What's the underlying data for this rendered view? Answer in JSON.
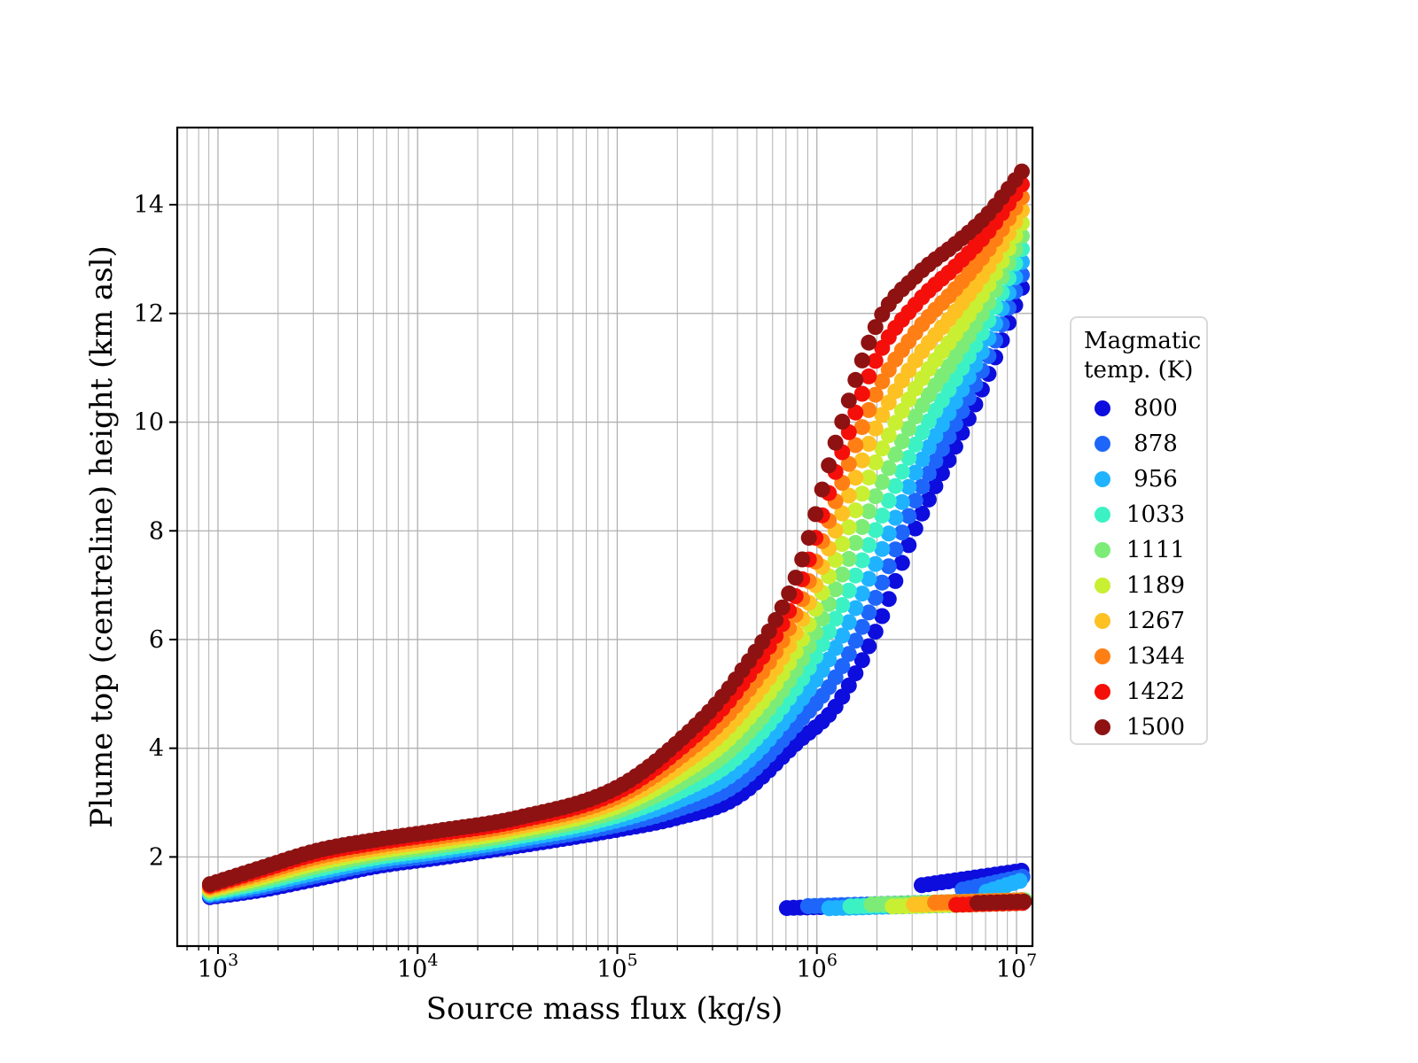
{
  "figure": {
    "background": "#ffffff"
  },
  "chart_data": {
    "type": "scatter",
    "title": "",
    "xlabel": "Source mass flux (kg/s)",
    "ylabel": "Plume top (centreline) height (km asl)",
    "x_scale": "log10",
    "xlim_log": [
      2.796,
      7.08
    ],
    "ylim": [
      0.36,
      15.42
    ],
    "xticks": [
      {
        "base": "10",
        "exp": "3",
        "log": 3
      },
      {
        "base": "10",
        "exp": "4",
        "log": 4
      },
      {
        "base": "10",
        "exp": "5",
        "log": 5
      },
      {
        "base": "10",
        "exp": "6",
        "log": 6
      },
      {
        "base": "10",
        "exp": "7",
        "log": 7
      }
    ],
    "yticks": [
      2,
      4,
      6,
      8,
      10,
      12,
      14
    ],
    "grid": {
      "color": "#b0b0b0",
      "major_width": 1.3,
      "minor_width": 1.0,
      "x_minor": true,
      "y_minor": false
    },
    "spine_color": "#000000",
    "marker_radius_px": 9,
    "points_per_decade": 30,
    "legend": {
      "title_lines": [
        "Magmatic",
        "temp. (K)"
      ],
      "border_color": "#d9d9d9",
      "entries": [
        {
          "label": "800",
          "color": "#0d0ddd"
        },
        {
          "label": "878",
          "color": "#1e66fa"
        },
        {
          "label": "956",
          "color": "#1fb3ff"
        },
        {
          "label": "1033",
          "color": "#3cf2c4"
        },
        {
          "label": "1111",
          "color": "#7cec77"
        },
        {
          "label": "1189",
          "color": "#c9ef33"
        },
        {
          "label": "1267",
          "color": "#fdc123"
        },
        {
          "label": "1344",
          "color": "#ff7f14"
        },
        {
          "label": "1422",
          "color": "#f50f0a"
        },
        {
          "label": "1500",
          "color": "#8e1212"
        }
      ]
    },
    "temps_K": [
      800,
      878,
      956,
      1033,
      1111,
      1189,
      1267,
      1344,
      1422,
      1500
    ],
    "main_branch": {
      "comment_units": "log10 of mass flux (kg/s) vs plume height (km asl)",
      "log_anchors": [
        2.96,
        3.2,
        3.5,
        3.8,
        4.1,
        4.5,
        5.0,
        5.3,
        5.6,
        5.9,
        6.1,
        6.3,
        6.5,
        6.7,
        6.85,
        7.035
      ],
      "h_coolest_800K": [
        1.26,
        1.38,
        1.6,
        1.83,
        1.98,
        2.2,
        2.5,
        2.72,
        3.1,
        4.1,
        4.8,
        6.2,
        8.1,
        9.6,
        10.8,
        12.55
      ],
      "h_hottest_1500K": [
        1.5,
        1.78,
        2.12,
        2.32,
        2.48,
        2.72,
        3.28,
        4.1,
        5.3,
        7.2,
        9.7,
        11.8,
        12.7,
        13.3,
        13.8,
        14.65
      ],
      "start_log": 2.96,
      "end_log": 7.035
    },
    "collapse_branch": {
      "base_start_log": 5.85,
      "per_series_start_step": 0.106,
      "end_log": 7.045,
      "h_start": 1.06,
      "h_end": 1.18,
      "per_series_offset_km": [
        0.0,
        0.025,
        -0.025
      ]
    },
    "weak_fountain_branches": [
      {
        "series_index": 0,
        "start_log": 6.525,
        "end_log": 7.035,
        "h_start": 1.48,
        "h_end": 1.75
      },
      {
        "series_index": 1,
        "start_log": 6.73,
        "end_log": 7.035,
        "h_start": 1.4,
        "h_end": 1.64
      },
      {
        "series_index": 2,
        "start_log": 6.85,
        "end_log": 7.035,
        "h_start": 1.36,
        "h_end": 1.58
      }
    ]
  }
}
